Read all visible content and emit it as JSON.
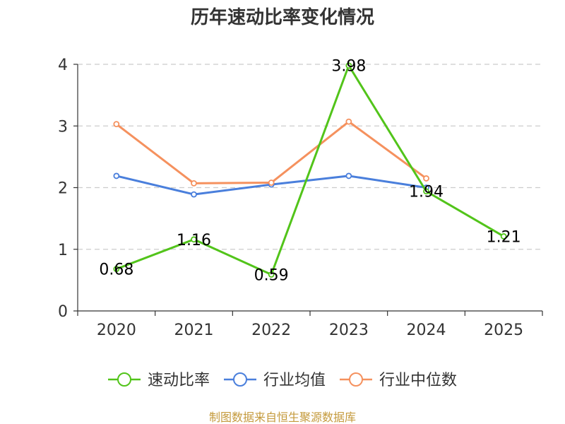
{
  "chart_data": {
    "type": "line",
    "title": "历年速动比率变化情况",
    "categories": [
      "2020",
      "2021",
      "2022",
      "2023",
      "2024",
      "2025"
    ],
    "ylim": [
      0,
      4
    ],
    "yticks": [
      "0",
      "1",
      "2",
      "3",
      "4"
    ],
    "grid": true,
    "series": [
      {
        "name": "速动比率",
        "color": "#52c41a",
        "values": [
          0.68,
          1.16,
          0.59,
          3.98,
          1.94,
          1.21
        ],
        "labels": [
          "0.68",
          "1.16",
          "0.59",
          "3.98",
          "1.94",
          "1.21"
        ]
      },
      {
        "name": "行业均值",
        "color": "#4a7fdc",
        "values": [
          2.19,
          1.89,
          2.05,
          2.19,
          2.0,
          null
        ]
      },
      {
        "name": "行业中位数",
        "color": "#f5915e",
        "values": [
          3.03,
          2.07,
          2.08,
          3.07,
          2.15,
          null
        ]
      }
    ],
    "legend_position": "bottom",
    "source": "制图数据来自恒生聚源数据库",
    "source_color": "#c49a3c"
  }
}
